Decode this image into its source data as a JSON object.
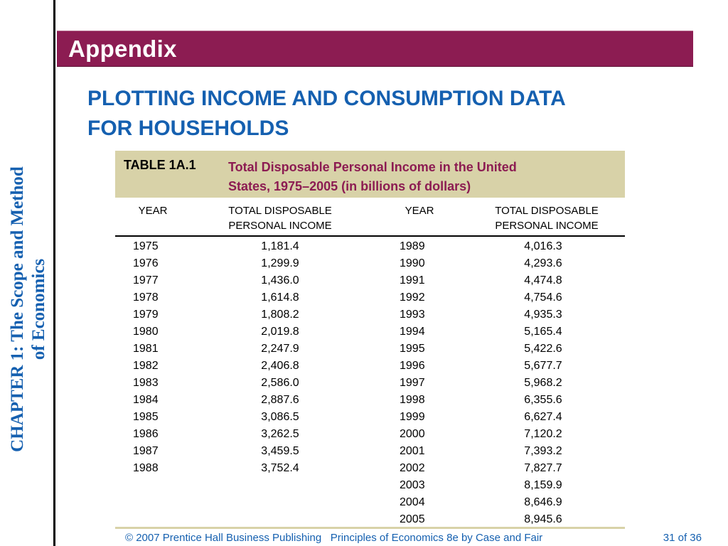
{
  "sidebar": {
    "chapter_line1": "CHAPTER 1:  The Scope and Method",
    "chapter_line2": "of Economics"
  },
  "banner": {
    "title": "Appendix"
  },
  "heading": {
    "line1": "PLOTTING INCOME AND CONSUMPTION DATA",
    "line2": "FOR HOUSEHOLDS"
  },
  "table": {
    "id": "TABLE 1A.1",
    "caption_line1": "Total Disposable Personal Income in the United",
    "caption_line2": "States, 1975–2005 (in billions of dollars)",
    "headers": {
      "year_left": "YEAR",
      "income_left_1": "TOTAL DISPOSABLE",
      "income_left_2": "PERSONAL INCOME",
      "year_right": "YEAR",
      "income_right_1": "TOTAL DISPOSABLE",
      "income_right_2": "PERSONAL INCOME"
    },
    "left_years": [
      "1975",
      "1976",
      "1977",
      "1978",
      "1979",
      "1980",
      "1981",
      "1982",
      "1983",
      "1984",
      "1985",
      "1986",
      "1987",
      "1988"
    ],
    "left_values": [
      "1,181.4",
      "1,299.9",
      "1,436.0",
      "1,614.8",
      "1,808.2",
      "2,019.8",
      "2,247.9",
      "2,406.8",
      "2,586.0",
      "2,887.6",
      "3,086.5",
      "3,262.5",
      "3,459.5",
      "3,752.4"
    ],
    "right_years": [
      "1989",
      "1990",
      "1991",
      "1992",
      "1993",
      "1994",
      "1995",
      "1996",
      "1997",
      "1998",
      "1999",
      "2000",
      "2001",
      "2002",
      "2003",
      "2004",
      "2005"
    ],
    "right_values": [
      "4,016.3",
      "4,293.6",
      "4,474.8",
      "4,754.6",
      "4,935.3",
      "5,165.4",
      "5,422.6",
      "5,677.7",
      "5,968.2",
      "6,355.6",
      "6,627.4",
      "7,120.2",
      "7,393.2",
      "7,827.7",
      "8,159.9",
      "8,646.9",
      "8,945.6"
    ]
  },
  "colors": {
    "banner": "#8c1c52",
    "accent_blue": "#1560b0",
    "table_header_bg": "#d8d2a8"
  },
  "footer": {
    "copyright": "© 2007 Prentice Hall Business Publishing   Principles of Economics 8e by Case and Fair",
    "page": "31 of 36"
  }
}
